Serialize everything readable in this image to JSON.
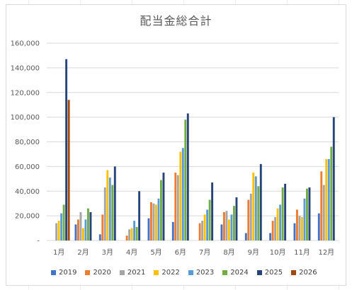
{
  "chart_data": {
    "type": "bar",
    "title": "配当金総合計",
    "xlabel": "",
    "ylabel": "",
    "ylim": [
      0,
      160000
    ],
    "yticks": [
      0,
      20000,
      40000,
      60000,
      80000,
      100000,
      120000,
      140000,
      160000
    ],
    "ytick_labels": [
      "-",
      "20,000",
      "40,000",
      "60,000",
      "80,000",
      "100,000",
      "120,000",
      "140,000",
      "160,000"
    ],
    "grid": true,
    "legend_position": "bottom",
    "categories": [
      "1月",
      "2月",
      "3月",
      "4月",
      "5月",
      "6月",
      "7月",
      "8月",
      "9月",
      "10月",
      "11月",
      "12月"
    ],
    "series": [
      {
        "name": "2019",
        "color": "#4472c4",
        "values": [
          0,
          13000,
          5000,
          0,
          18000,
          15000,
          0,
          13000,
          6000,
          6000,
          14000,
          22000
        ]
      },
      {
        "name": "2020",
        "color": "#ed7d31",
        "values": [
          0,
          17000,
          21000,
          4000,
          31000,
          55000,
          14000,
          23000,
          33000,
          16000,
          25000,
          56000
        ]
      },
      {
        "name": "2021",
        "color": "#a5a5a5",
        "values": [
          14000,
          23000,
          43000,
          9000,
          30000,
          53000,
          16000,
          24000,
          38000,
          19000,
          20000,
          45000
        ]
      },
      {
        "name": "2022",
        "color": "#ffc000",
        "values": [
          16000,
          10000,
          57000,
          10000,
          29000,
          72000,
          21000,
          17000,
          55000,
          26000,
          19000,
          66000
        ]
      },
      {
        "name": "2023",
        "color": "#5b9bd5",
        "values": [
          22000,
          17000,
          51000,
          16000,
          34000,
          75000,
          25000,
          21000,
          52000,
          29000,
          34000,
          66000
        ]
      },
      {
        "name": "2024",
        "color": "#70ad47",
        "values": [
          29000,
          26000,
          45000,
          11000,
          49000,
          98000,
          33000,
          28000,
          44000,
          43000,
          42000,
          76000
        ]
      },
      {
        "name": "2025",
        "color": "#264478",
        "values": [
          147000,
          23000,
          60000,
          40000,
          55000,
          103000,
          47000,
          35000,
          62000,
          46000,
          43000,
          100000
        ]
      },
      {
        "name": "2026",
        "color": "#9e480e",
        "values": [
          114000,
          0,
          0,
          0,
          0,
          0,
          0,
          0,
          0,
          0,
          0,
          0
        ]
      }
    ]
  }
}
